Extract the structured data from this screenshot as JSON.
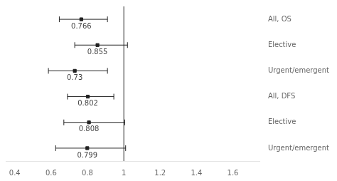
{
  "chart_data": {
    "type": "forest",
    "categories": [
      "All, OS",
      "Elective",
      "Urgent/emergent",
      "All, DFS",
      "Elective",
      "Urgent/emergent"
    ],
    "values": [
      0.766,
      0.855,
      0.73,
      0.802,
      0.808,
      0.799
    ],
    "ci_low": [
      0.645,
      0.73,
      0.585,
      0.69,
      0.67,
      0.625
    ],
    "ci_high": [
      0.91,
      1.02,
      0.91,
      0.945,
      1.005,
      1.01
    ],
    "color": "#222222",
    "reference_line": 1.0,
    "xlim": [
      0.35,
      1.75
    ],
    "xticks": [
      0.4,
      0.6,
      0.8,
      1,
      1.2,
      1.4,
      1.6
    ],
    "data_labels": true,
    "grid": false
  }
}
